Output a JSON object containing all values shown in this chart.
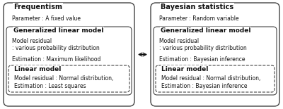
{
  "fig_width": 4.0,
  "fig_height": 1.55,
  "dpi": 100,
  "bg_color": "#ffffff",
  "text_color": "#111111",
  "box_edge_color": "#444444",
  "dashed_color": "#444444",
  "left": {
    "title": "Frequentism",
    "param": "Parameter : A fixed value",
    "glm_title": "Generalized linear model",
    "glm_lines": [
      "Model residual",
      ": various probability distribution",
      "Estimation : Maximum likelihood"
    ],
    "lm_title": "Linear model",
    "lm_lines": [
      "Model residual : Normal distribution,",
      "Estimation : Least squares"
    ]
  },
  "right": {
    "title": "Bayesian statistics",
    "param": "Parameter : Random variable",
    "glm_title": "Generalized linear model",
    "glm_lines": [
      "Model residual",
      ": various probability distribution",
      "Estimation : Bayesian inference"
    ],
    "lm_title": "Linear model",
    "lm_lines": [
      "Model residual : Normal distribution,",
      "Estimation : Bayesian inference"
    ]
  }
}
